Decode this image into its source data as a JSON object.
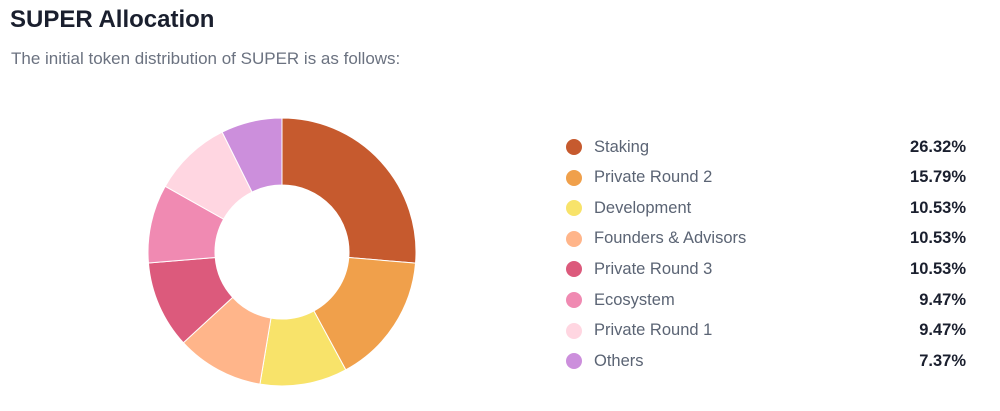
{
  "title": "SUPER Allocation",
  "subtitle": "The initial token distribution of SUPER is as follows:",
  "chart_data": {
    "type": "pie",
    "donut": true,
    "legend": "right",
    "categories": [
      "Staking",
      "Private Round 2",
      "Development",
      "Founders & Advisors",
      "Private Round 3",
      "Ecosystem",
      "Private Round 1",
      "Others"
    ],
    "values": [
      26.32,
      15.79,
      10.53,
      10.53,
      10.53,
      9.47,
      9.47,
      7.37
    ],
    "labels": [
      "26.32%",
      "15.79%",
      "10.53%",
      "10.53%",
      "10.53%",
      "9.47%",
      "9.47%",
      "7.37%"
    ],
    "colors": [
      "#c65a2e",
      "#f0a04b",
      "#f8e36a",
      "#ffb58a",
      "#dc5a7c",
      "#f08ab2",
      "#ffd6e1",
      "#cc8fdc"
    ]
  }
}
